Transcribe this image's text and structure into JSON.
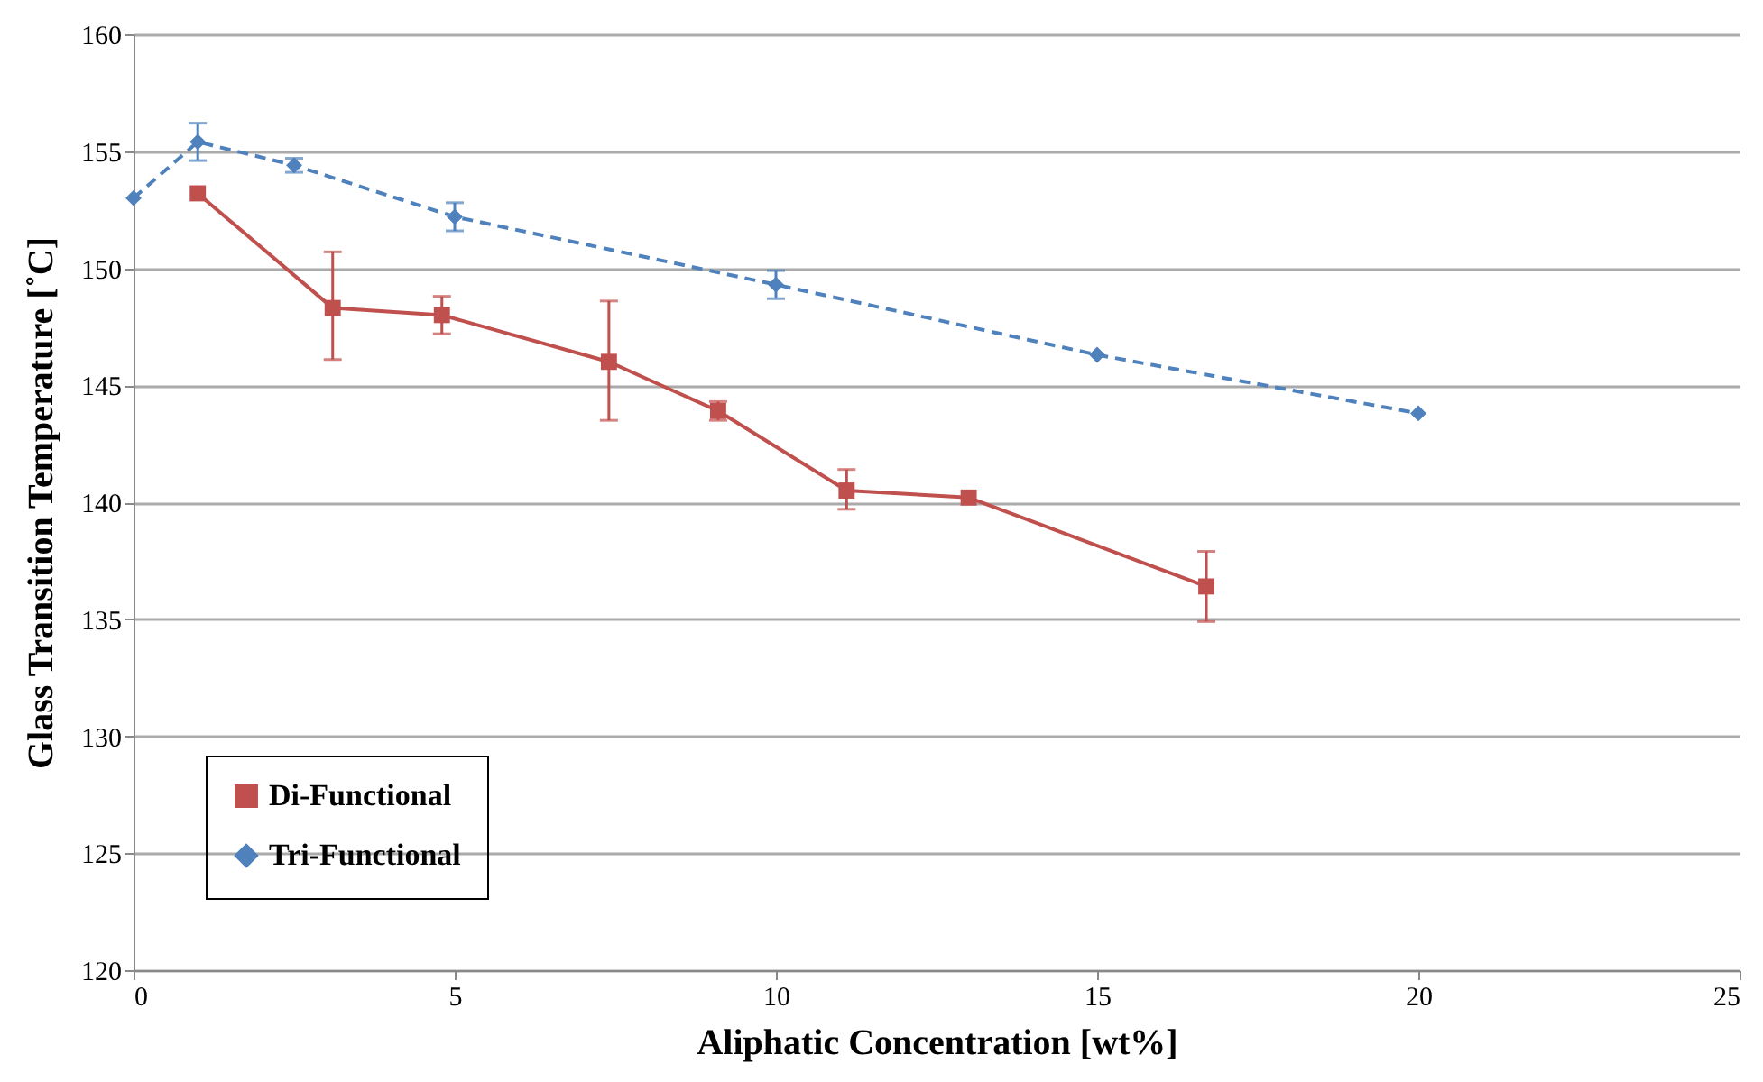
{
  "chart_data": {
    "type": "line",
    "xlabel": "Aliphatic Concentration [wt%]",
    "ylabel": "Glass Transition Temperature [˚C]",
    "xlim": [
      0,
      25
    ],
    "xticks": [
      0,
      5,
      10,
      15,
      20,
      25
    ],
    "ylim": [
      120,
      160
    ],
    "yticks": [
      120,
      125,
      130,
      135,
      140,
      145,
      150,
      155,
      160
    ],
    "grid": "y",
    "legend": "bottom left",
    "series": [
      {
        "name": "Di-Functional",
        "color": "#c0504d",
        "marker": "square",
        "line_style": "solid",
        "x": [
          1.0,
          3.1,
          4.8,
          7.4,
          9.1,
          11.1,
          13.0,
          16.7
        ],
        "values": [
          153.2,
          148.3,
          148.0,
          146.0,
          143.9,
          140.5,
          140.2,
          136.4
        ],
        "errors": [
          null,
          [
            146.1,
            150.7
          ],
          [
            147.2,
            148.8
          ],
          [
            143.5,
            148.6
          ],
          [
            143.5,
            144.3
          ],
          [
            139.7,
            141.4
          ],
          null,
          [
            134.9,
            137.9
          ]
        ]
      },
      {
        "name": "Tri-Functional",
        "color": "#4f81bd",
        "marker": "diamond",
        "line_style": "dashed",
        "x": [
          0,
          1,
          2.5,
          5,
          10,
          15,
          20
        ],
        "values": [
          153.0,
          155.4,
          154.4,
          152.2,
          149.3,
          146.3,
          143.8
        ],
        "errors": [
          null,
          [
            154.6,
            156.2
          ],
          [
            154.1,
            154.7
          ],
          [
            151.6,
            152.8
          ],
          [
            148.7,
            149.9
          ],
          null,
          null
        ]
      }
    ]
  }
}
